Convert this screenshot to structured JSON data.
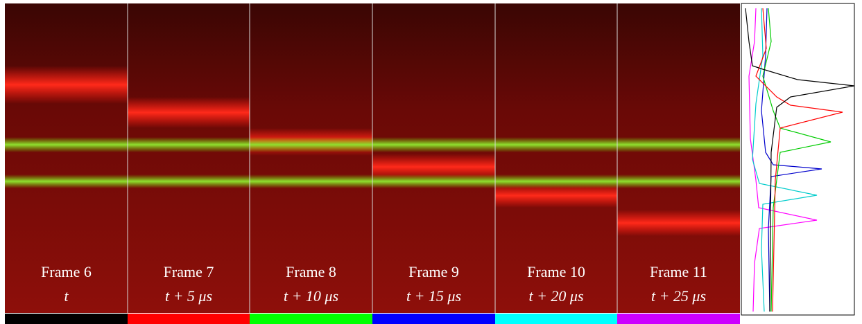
{
  "frames": [
    {
      "label": "Frame 6",
      "time": "t",
      "color": "#000000"
    },
    {
      "label": "Frame 7",
      "time": "t + 5 μs",
      "color": "#ff0000"
    },
    {
      "label": "Frame 8",
      "time": "t + 10 μs",
      "color": "#00ff00"
    },
    {
      "label": "Frame 9",
      "time": "t + 15 μs",
      "color": "#0000ff"
    },
    {
      "label": "Frame 10",
      "time": "t + 20 μs",
      "color": "#00ffff"
    },
    {
      "label": "Frame 11",
      "time": "t + 25 μs",
      "color": "#cc00ff"
    }
  ]
}
